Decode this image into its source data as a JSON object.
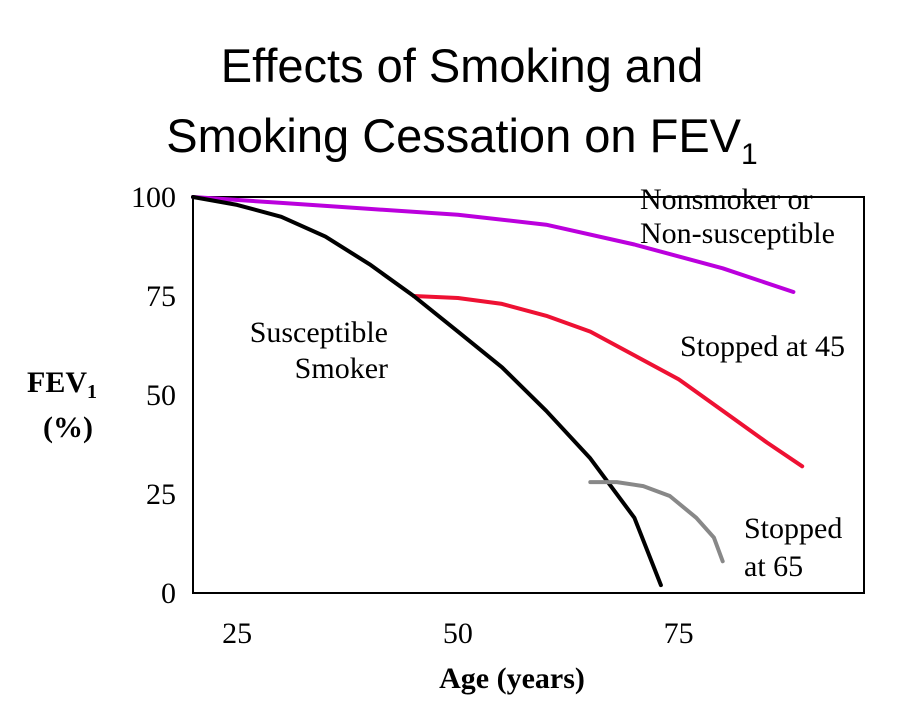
{
  "chart_data": {
    "type": "line",
    "title": {
      "line1": "Effects of Smoking and",
      "line2_main": "Smoking Cessation on FEV",
      "line2_sub": "1"
    },
    "xlabel": "Age  (years)",
    "ylabel": {
      "main": "FEV",
      "sub": "1",
      "unit": "(%)"
    },
    "xlim": [
      20,
      96
    ],
    "ylim": [
      0,
      100
    ],
    "x_ticks": [
      25,
      50,
      75
    ],
    "y_ticks": [
      100,
      75,
      50,
      25,
      0
    ],
    "grid": false,
    "series": [
      {
        "name": "Nonsmoker or Non-susceptible",
        "color": "#bb00dd",
        "x": [
          20,
          30,
          40,
          50,
          60,
          70,
          80,
          88
        ],
        "y": [
          100,
          98.5,
          97,
          95.5,
          93,
          88,
          82,
          76
        ]
      },
      {
        "name": "Stopped at 45",
        "color": "#ee1133",
        "x": [
          45,
          50,
          55,
          60,
          65,
          70,
          75,
          80,
          85,
          89
        ],
        "y": [
          75,
          74.5,
          73,
          70,
          66,
          60,
          54,
          46,
          38,
          32
        ]
      },
      {
        "name": "Susceptible Smoker",
        "color": "#000000",
        "x": [
          20,
          25,
          30,
          35,
          40,
          45,
          50,
          55,
          60,
          65,
          70,
          73
        ],
        "y": [
          100,
          98,
          95,
          90,
          83,
          75,
          66,
          57,
          46,
          34,
          19,
          2
        ]
      },
      {
        "name": "Stopped at 65",
        "color": "#888888",
        "x": [
          65,
          68,
          71,
          74,
          77,
          79,
          80
        ],
        "y": [
          28,
          28,
          27,
          24.5,
          19,
          14,
          8
        ]
      }
    ],
    "annotations": {
      "nonsmoker_line1": "Nonsmoker or",
      "nonsmoker_line2": "Non-susceptible",
      "smoker_line1": "Susceptible",
      "smoker_line2": "Smoker",
      "stop45": "Stopped at 45",
      "stop65_line1": "Stopped",
      "stop65_line2": "at 65"
    }
  }
}
